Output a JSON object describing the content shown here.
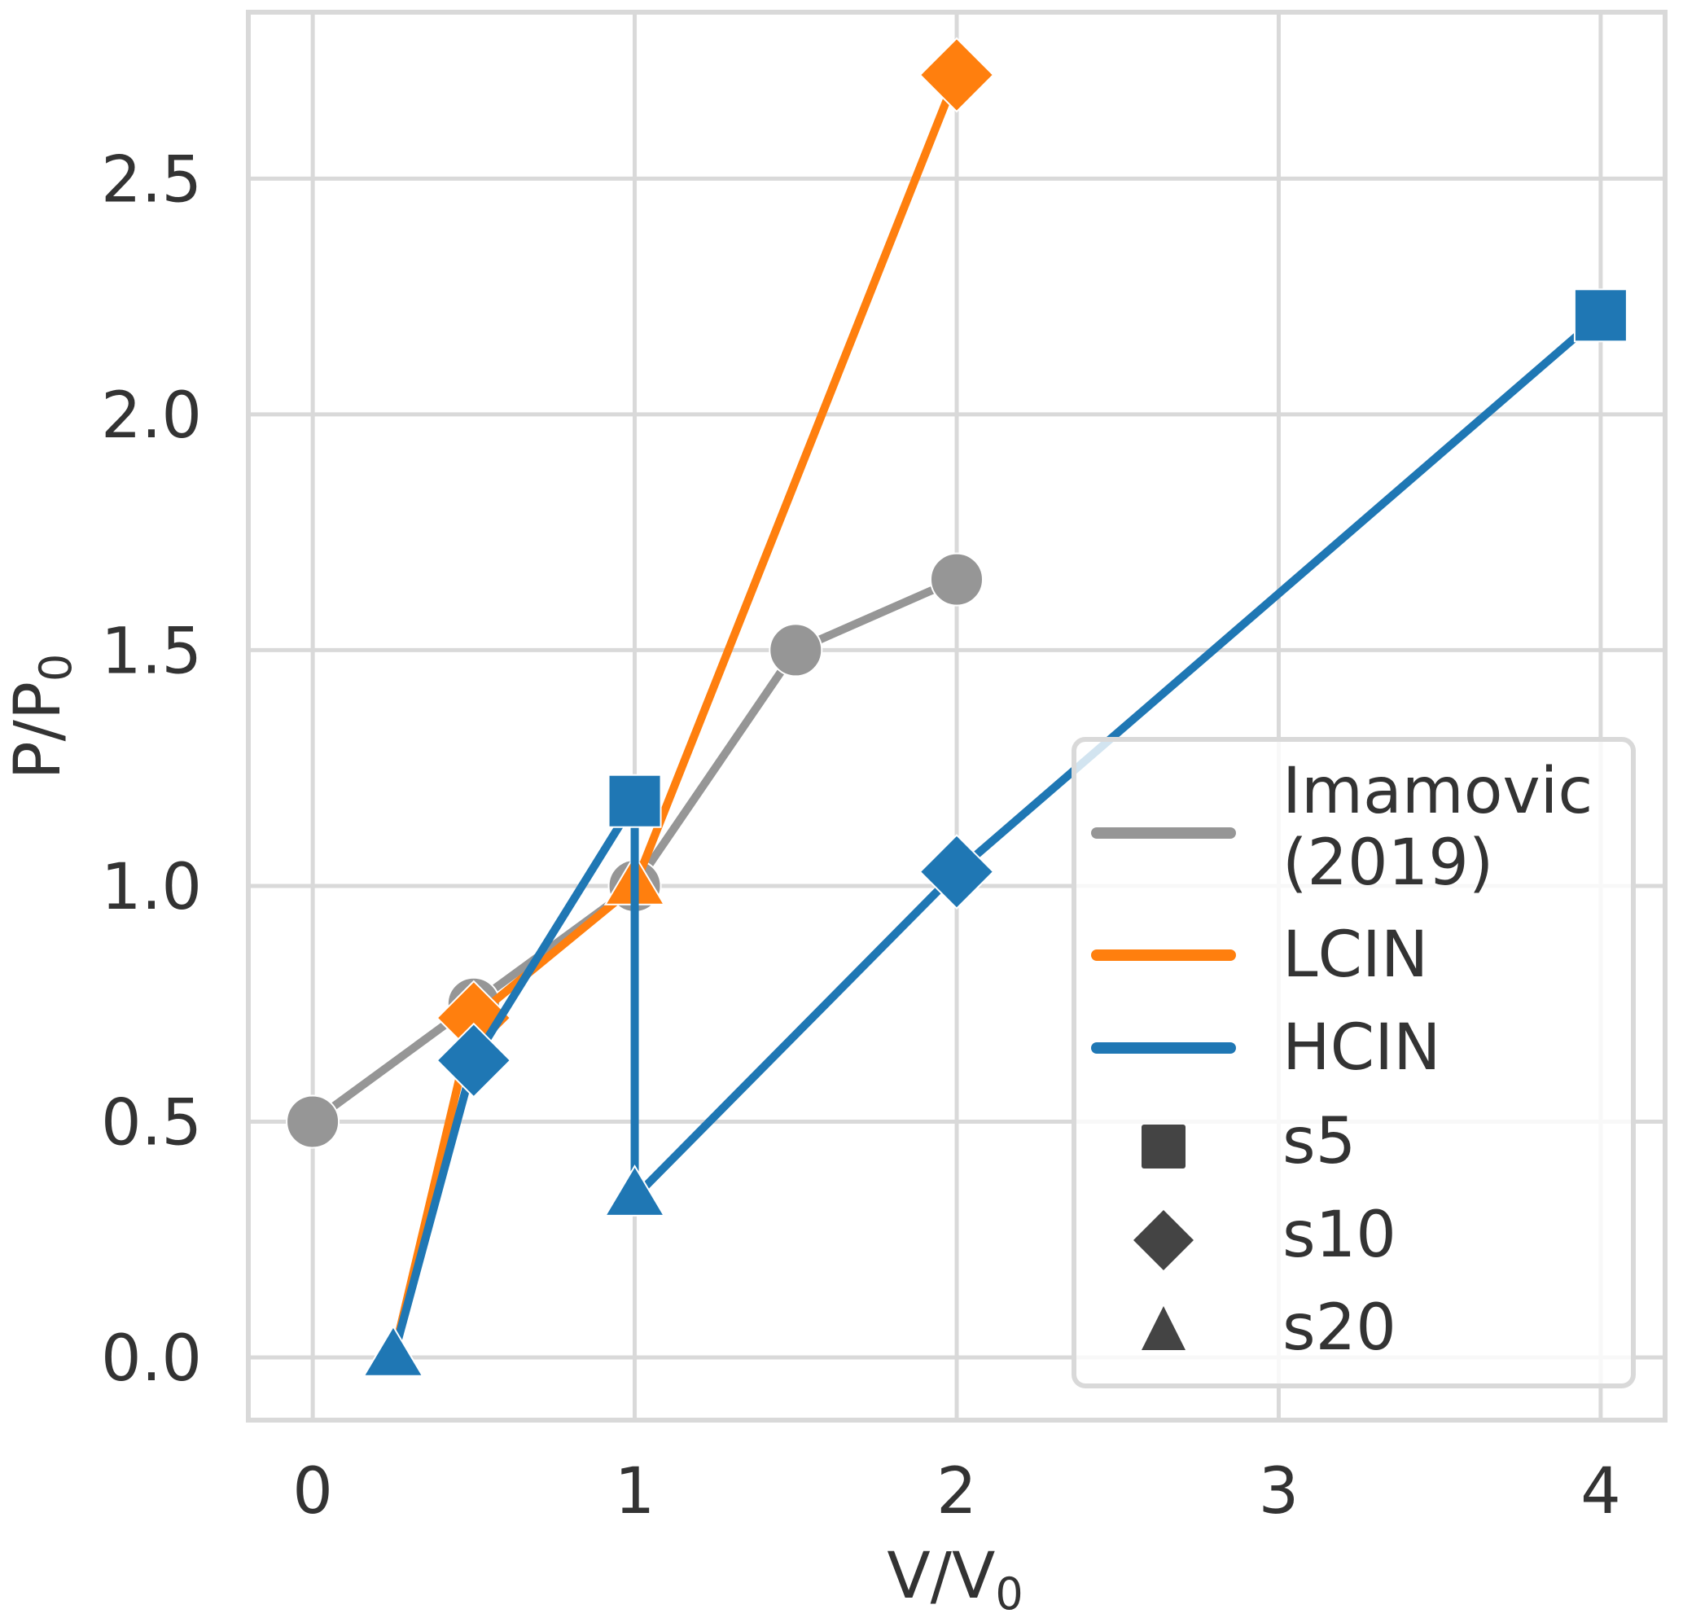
{
  "chart_data": {
    "type": "line",
    "title": "",
    "xlabel": "V/V",
    "xlabel_sub": "0",
    "ylabel": "P/P",
    "ylabel_sub": "0",
    "xlim": [
      -0.2,
      4.2
    ],
    "ylim": [
      -0.133,
      2.853
    ],
    "grid": true,
    "x_ticks": [
      0,
      1,
      2,
      3,
      4
    ],
    "x_tick_labels": [
      "0",
      "1",
      "2",
      "3",
      "4"
    ],
    "y_ticks": [
      0.0,
      0.5,
      1.0,
      1.5,
      2.0,
      2.5
    ],
    "y_tick_labels": [
      "0.0",
      "0.5",
      "1.0",
      "1.5",
      "2.0",
      "2.5"
    ],
    "series": [
      {
        "name": "Imamovic (2019)",
        "color": "#969696",
        "points": [
          {
            "x": 0.0,
            "y": 0.5,
            "marker": "circle"
          },
          {
            "x": 0.5,
            "y": 0.75,
            "marker": "circle"
          },
          {
            "x": 1.0,
            "y": 1.0,
            "marker": "circle"
          },
          {
            "x": 1.5,
            "y": 1.5,
            "marker": "circle"
          },
          {
            "x": 2.0,
            "y": 1.65,
            "marker": "circle"
          }
        ]
      },
      {
        "name": "LCIN",
        "color": "#ff7f0e",
        "points": [
          {
            "x": 0.25,
            "y": 0.0,
            "marker": "s20"
          },
          {
            "x": 0.5,
            "y": 0.72,
            "marker": "s10"
          },
          {
            "x": 1.0,
            "y": 1.0,
            "marker": "s20"
          },
          {
            "x": 2.0,
            "y": 2.72,
            "marker": "s10"
          }
        ]
      },
      {
        "name": "HCIN",
        "color": "#1f77b4",
        "points": [
          {
            "x": 0.25,
            "y": 0.0,
            "marker": "s20"
          },
          {
            "x": 0.5,
            "y": 0.63,
            "marker": "s10"
          },
          {
            "x": 1.0,
            "y": 1.18,
            "marker": "s5"
          },
          {
            "x": 1.0,
            "y": 0.34,
            "marker": "s20"
          },
          {
            "x": 2.0,
            "y": 1.03,
            "marker": "s10"
          },
          {
            "x": 4.0,
            "y": 2.21,
            "marker": "s5"
          }
        ]
      }
    ],
    "legend": {
      "placement": "lower-right",
      "line_entries": [
        {
          "label_lines": [
            "Imamovic",
            "(2019)"
          ],
          "color": "#969696"
        },
        {
          "label_lines": [
            "LCIN"
          ],
          "color": "#ff7f0e"
        },
        {
          "label_lines": [
            "HCIN"
          ],
          "color": "#1f77b4"
        }
      ],
      "marker_entries": [
        {
          "label": "s5",
          "marker": "square",
          "color": "#444444"
        },
        {
          "label": "s10",
          "marker": "diamond",
          "color": "#444444"
        },
        {
          "label": "s20",
          "marker": "triangle",
          "color": "#444444"
        }
      ]
    }
  }
}
